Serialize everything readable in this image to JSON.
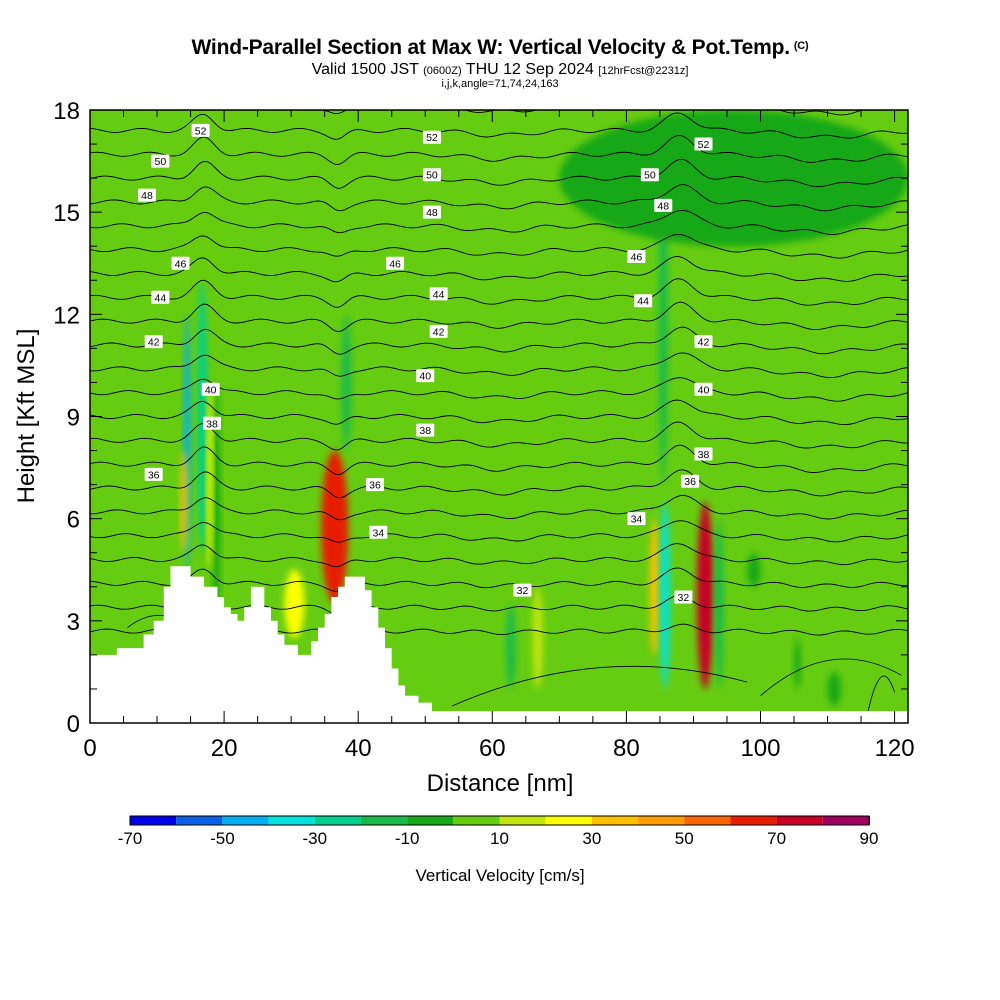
{
  "header": {
    "title": "Wind-Parallel Section at Max W: Vertical Velocity & Pot.Temp.",
    "copyright": "(C)",
    "valid_prefix": "Valid 1500 JST",
    "valid_utc": "(0600Z)",
    "valid_date": "THU 12 Sep 2024",
    "forecast": "[12hrFcst@2231z]",
    "indices": "i,j,k,angle=71,74,24,163"
  },
  "chart_data": {
    "type": "heatmap",
    "xlabel": "Distance [nm]",
    "ylabel": "Height [Kft MSL]",
    "xlim": [
      0,
      122
    ],
    "ylim": [
      0,
      18
    ],
    "x_ticks": [
      0,
      20,
      40,
      60,
      80,
      100,
      120
    ],
    "y_ticks": [
      0,
      3,
      6,
      9,
      12,
      15,
      18
    ],
    "grid": false,
    "colorbar": {
      "label": "Vertical Velocity [cm/s]",
      "placement": "bottom",
      "bounds": [
        -70,
        -60,
        -50,
        -40,
        -30,
        -20,
        -10,
        0,
        10,
        20,
        30,
        40,
        50,
        60,
        70,
        80,
        90
      ],
      "tick_labels": [
        "-70",
        "-50",
        "-30",
        "-10",
        "10",
        "30",
        "50",
        "70",
        "90"
      ],
      "colors": [
        "#0000ee",
        "#0a5fe6",
        "#00b0f0",
        "#00e2da",
        "#00d08c",
        "#1aba4a",
        "#18a818",
        "#66cc11",
        "#c2e60d",
        "#ffff00",
        "#ffc000",
        "#ff9c00",
        "#ff6400",
        "#e81c00",
        "#c80028",
        "#a00060",
        "#7a0098"
      ]
    },
    "background_w": 0,
    "w_cells": [
      {
        "x": [
          12,
          21
        ],
        "z": [
          0,
          16
        ],
        "w": 5
      },
      {
        "x": [
          14,
          15
        ],
        "z": [
          4.5,
          12
        ],
        "w": -50
      },
      {
        "x": [
          16,
          17.5
        ],
        "z": [
          5,
          13
        ],
        "w": -30
      },
      {
        "x": [
          18.3,
          19.4
        ],
        "z": [
          2,
          10
        ],
        "w": -10
      },
      {
        "x": [
          13.5,
          14.5
        ],
        "z": [
          5,
          8
        ],
        "w": 30
      },
      {
        "x": [
          17.5,
          18.3
        ],
        "z": [
          4.5,
          10
        ],
        "w": 20
      },
      {
        "x": [
          34.5,
          38.5
        ],
        "z": [
          3.5,
          8
        ],
        "w": 60
      },
      {
        "x": [
          37.5,
          39
        ],
        "z": [
          8,
          12
        ],
        "w": -20
      },
      {
        "x": [
          29,
          32
        ],
        "z": [
          2.5,
          4.5
        ],
        "w": 25
      },
      {
        "x": [
          62,
          63.5
        ],
        "z": [
          1,
          3.5
        ],
        "w": -15
      },
      {
        "x": [
          66,
          67.5
        ],
        "z": [
          1,
          4
        ],
        "w": 15
      },
      {
        "x": [
          83.5,
          85
        ],
        "z": [
          2,
          6
        ],
        "w": 30
      },
      {
        "x": [
          85,
          86.5
        ],
        "z": [
          1,
          6.5
        ],
        "w": -40
      },
      {
        "x": [
          84.8,
          86.2
        ],
        "z": [
          7,
          17.5
        ],
        "w": -15
      },
      {
        "x": [
          90.5,
          93
        ],
        "z": [
          1,
          6.5
        ],
        "w": 75
      },
      {
        "x": [
          93.2,
          94.5
        ],
        "z": [
          1,
          6
        ],
        "w": -15
      },
      {
        "x": [
          98,
          100
        ],
        "z": [
          4,
          5
        ],
        "w": -10
      },
      {
        "x": [
          105,
          106
        ],
        "z": [
          1,
          2.5
        ],
        "w": -10
      },
      {
        "x": [
          110,
          112
        ],
        "z": [
          0.5,
          1.5
        ],
        "w": -10
      },
      {
        "x": [
          48,
          70
        ],
        "z": [
          6,
          11
        ],
        "w": 5
      },
      {
        "x": [
          70,
          122
        ],
        "z": [
          14,
          18
        ],
        "w": -5
      }
    ],
    "terrain": [
      [
        0,
        2
      ],
      [
        4,
        2
      ],
      [
        4,
        2.2
      ],
      [
        8,
        2.2
      ],
      [
        8,
        2.6
      ],
      [
        9.5,
        2.6
      ],
      [
        9.5,
        3.0
      ],
      [
        11,
        3.0
      ],
      [
        11,
        4.0
      ],
      [
        12,
        4.0
      ],
      [
        12,
        4.6
      ],
      [
        15,
        4.6
      ],
      [
        15,
        4.3
      ],
      [
        17,
        4.3
      ],
      [
        17,
        4.0
      ],
      [
        19,
        4.0
      ],
      [
        19,
        3.7
      ],
      [
        20,
        3.7
      ],
      [
        20,
        3.4
      ],
      [
        21,
        3.4
      ],
      [
        21,
        3.2
      ],
      [
        22,
        3.2
      ],
      [
        22,
        3.0
      ],
      [
        23,
        3.0
      ],
      [
        23,
        3.4
      ],
      [
        24,
        3.4
      ],
      [
        24,
        4.0
      ],
      [
        26,
        4.0
      ],
      [
        26,
        3.4
      ],
      [
        27,
        3.4
      ],
      [
        27,
        3.0
      ],
      [
        28,
        3.0
      ],
      [
        28,
        2.6
      ],
      [
        29,
        2.6
      ],
      [
        29,
        2.3
      ],
      [
        31,
        2.3
      ],
      [
        31,
        2.0
      ],
      [
        33,
        2.0
      ],
      [
        33,
        2.4
      ],
      [
        34,
        2.4
      ],
      [
        34,
        2.8
      ],
      [
        35,
        2.8
      ],
      [
        35,
        3.2
      ],
      [
        36,
        3.2
      ],
      [
        36,
        3.7
      ],
      [
        37,
        3.7
      ],
      [
        37,
        4.0
      ],
      [
        38,
        4.0
      ],
      [
        38,
        4.3
      ],
      [
        41,
        4.3
      ],
      [
        41,
        3.9
      ],
      [
        42,
        3.9
      ],
      [
        42,
        3.4
      ],
      [
        43,
        3.4
      ],
      [
        43,
        2.8
      ],
      [
        44,
        2.8
      ],
      [
        44,
        2.2
      ],
      [
        45,
        2.2
      ],
      [
        45,
        1.6
      ],
      [
        46,
        1.6
      ],
      [
        46,
        1.1
      ],
      [
        47,
        1.1
      ],
      [
        47,
        0.8
      ],
      [
        49,
        0.8
      ],
      [
        49,
        0.6
      ],
      [
        51,
        0.6
      ],
      [
        51,
        0.35
      ],
      [
        122,
        0.35
      ]
    ],
    "isotherm_labels": [
      {
        "text": "52",
        "x": 16.5,
        "y": 17.4
      },
      {
        "text": "50",
        "x": 10.5,
        "y": 16.5
      },
      {
        "text": "48",
        "x": 8.5,
        "y": 15.5
      },
      {
        "text": "46",
        "x": 13.5,
        "y": 13.5
      },
      {
        "text": "44",
        "x": 10.5,
        "y": 12.5
      },
      {
        "text": "42",
        "x": 9.5,
        "y": 11.2
      },
      {
        "text": "40",
        "x": 18,
        "y": 9.8
      },
      {
        "text": "38",
        "x": 18.2,
        "y": 8.8
      },
      {
        "text": "36",
        "x": 9.5,
        "y": 7.3
      },
      {
        "text": "52",
        "x": 51,
        "y": 17.2
      },
      {
        "text": "50",
        "x": 51,
        "y": 16.1
      },
      {
        "text": "48",
        "x": 51,
        "y": 15.0
      },
      {
        "text": "46",
        "x": 45.5,
        "y": 13.5
      },
      {
        "text": "44",
        "x": 52,
        "y": 12.6
      },
      {
        "text": "42",
        "x": 52,
        "y": 11.5
      },
      {
        "text": "40",
        "x": 50,
        "y": 10.2
      },
      {
        "text": "38",
        "x": 50,
        "y": 8.6
      },
      {
        "text": "36",
        "x": 42.5,
        "y": 7.0
      },
      {
        "text": "34",
        "x": 43,
        "y": 5.6
      },
      {
        "text": "32",
        "x": 64.5,
        "y": 3.9
      },
      {
        "text": "52",
        "x": 91.5,
        "y": 17.0
      },
      {
        "text": "50",
        "x": 83.5,
        "y": 16.1
      },
      {
        "text": "48",
        "x": 85.5,
        "y": 15.2
      },
      {
        "text": "46",
        "x": 81.5,
        "y": 13.7
      },
      {
        "text": "44",
        "x": 82.5,
        "y": 12.4
      },
      {
        "text": "42",
        "x": 91.5,
        "y": 11.2
      },
      {
        "text": "40",
        "x": 91.5,
        "y": 9.8
      },
      {
        "text": "38",
        "x": 91.5,
        "y": 7.9
      },
      {
        "text": "36",
        "x": 89.5,
        "y": 7.1
      },
      {
        "text": "34",
        "x": 81.5,
        "y": 6.0
      },
      {
        "text": "32",
        "x": 88.5,
        "y": 3.7
      }
    ]
  }
}
